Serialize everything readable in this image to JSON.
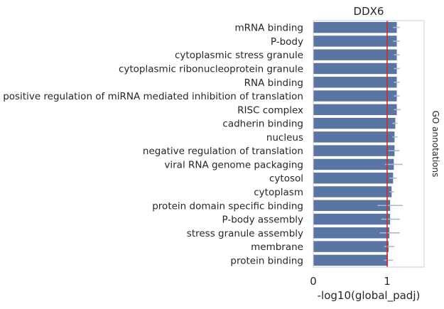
{
  "chart_data": {
    "type": "bar",
    "orientation": "horizontal",
    "title": "DDX6",
    "xlabel": "-log10(global_padj)",
    "ylabel": "GO annotations",
    "xlim": [
      0,
      1.5
    ],
    "xticks": [
      "0",
      "1"
    ],
    "grid": false,
    "bar_color": "#5975a4",
    "errorbar_color": "#b0b7c6",
    "reference_line": {
      "value": 1.0,
      "color": "#d62728"
    },
    "categories": [
      "mRNA binding",
      "P-body",
      "cytoplasmic stress granule",
      "cytoplasmic ribonucleoprotein granule",
      "RNA binding",
      "positive regulation of miRNA mediated inhibition of translation",
      "RISC complex",
      "cadherin binding",
      "nucleus",
      "negative regulation of translation",
      "viral RNA genome packaging",
      "cytosol",
      "cytoplasm",
      "protein domain specific binding",
      "P-body assembly",
      "stress granule assembly",
      "membrane",
      "protein binding"
    ],
    "values": [
      1.13,
      1.13,
      1.13,
      1.13,
      1.13,
      1.13,
      1.13,
      1.11,
      1.1,
      1.1,
      1.09,
      1.08,
      1.06,
      1.04,
      1.04,
      1.03,
      1.02,
      1.01
    ],
    "error_low": [
      1.08,
      1.08,
      1.09,
      1.09,
      1.09,
      1.09,
      1.09,
      1.07,
      1.07,
      1.02,
      0.97,
      1.03,
      1.03,
      0.87,
      0.92,
      0.9,
      0.96,
      0.96
    ],
    "error_high": [
      1.17,
      1.17,
      1.17,
      1.17,
      1.17,
      1.17,
      1.18,
      1.14,
      1.14,
      1.17,
      1.21,
      1.13,
      1.09,
      1.21,
      1.17,
      1.17,
      1.1,
      1.08
    ]
  }
}
